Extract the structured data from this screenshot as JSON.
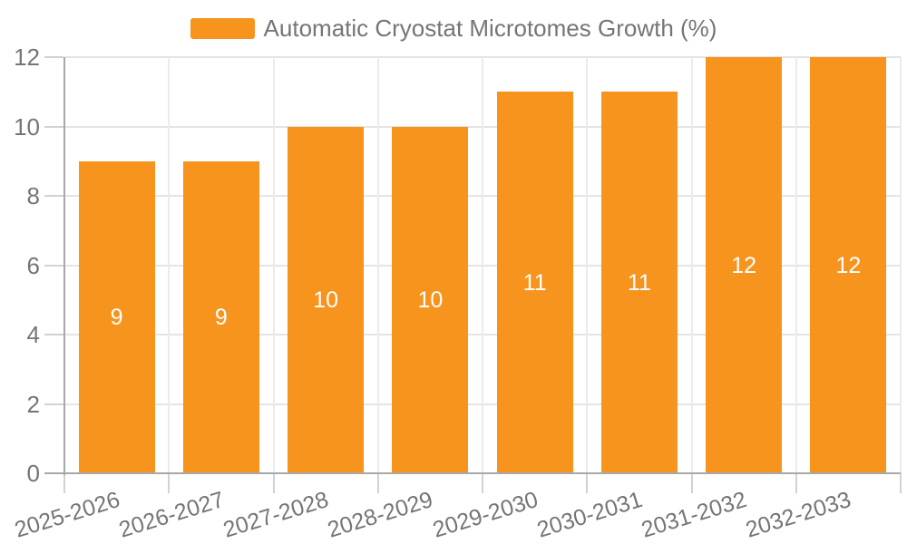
{
  "legend": {
    "label": "Automatic Cryostat Microtomes Growth (%)"
  },
  "chart_data": {
    "type": "bar",
    "title": "Automatic Cryostat Microtomes Growth (%)",
    "series_name": "Automatic Cryostat Microtomes Growth (%)",
    "categories": [
      "2025-2026",
      "2026-2027",
      "2027-2028",
      "2028-2029",
      "2029-2030",
      "2030-2031",
      "2031-2032",
      "2032-2033"
    ],
    "values": [
      9,
      9,
      10,
      10,
      11,
      11,
      12,
      12
    ],
    "xlabel": "",
    "ylabel": "",
    "ylim": [
      0,
      12
    ],
    "yticks": [
      0,
      2,
      4,
      6,
      8,
      10,
      12
    ],
    "grid": true,
    "legend_position": "top-center",
    "x_label_rotation_deg": -17,
    "value_labels_inside_bars": true
  },
  "colors": {
    "bar": "#F7941E",
    "grid_line": "#e4e4e4",
    "axis_line": "#a8a8a8",
    "tick_mark": "#d2d2d2",
    "tick_label_text": "#757575",
    "legend_text": "#757575",
    "bar_value_text": "#ffffff",
    "background": "#ffffff"
  }
}
